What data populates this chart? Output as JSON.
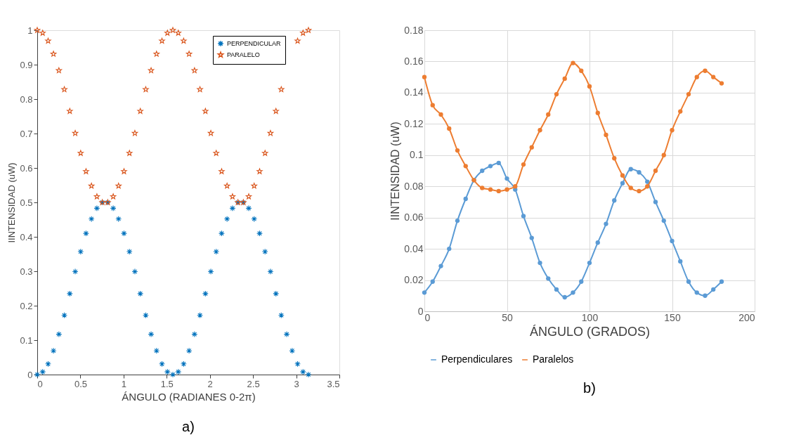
{
  "chart_data": [
    {
      "type": "scatter",
      "xlabel": "ÁNGULO (RADIANES 0-2π)",
      "ylabel": "IINTENSIDAD (uW)",
      "annotations": [
        "a)"
      ],
      "x": [
        0,
        0.063,
        0.126,
        0.188,
        0.251,
        0.314,
        0.377,
        0.44,
        0.503,
        0.565,
        0.628,
        0.691,
        0.754,
        0.817,
        0.88,
        0.942,
        1.005,
        1.068,
        1.131,
        1.194,
        1.257,
        1.319,
        1.382,
        1.445,
        1.508,
        1.571,
        1.634,
        1.696,
        1.759,
        1.822,
        1.885,
        1.948,
        2.011,
        2.073,
        2.136,
        2.199,
        2.262,
        2.325,
        2.388,
        2.45,
        2.513,
        2.576,
        2.639,
        2.702,
        2.765,
        2.827,
        2.89,
        2.953,
        3.016,
        3.079,
        3.142
      ],
      "series": [
        {
          "name": "PERPENDICULAR",
          "color": "#0072bd",
          "marker": "cross",
          "values": [
            0,
            0.008,
            0.031,
            0.069,
            0.117,
            0.172,
            0.235,
            0.299,
            0.357,
            0.41,
            0.452,
            0.483,
            0.5,
            0.5,
            0.483,
            0.452,
            0.41,
            0.357,
            0.299,
            0.235,
            0.172,
            0.117,
            0.069,
            0.031,
            0.008,
            0,
            0.008,
            0.031,
            0.069,
            0.117,
            0.172,
            0.235,
            0.299,
            0.357,
            0.41,
            0.452,
            0.483,
            0.5,
            0.5,
            0.483,
            0.452,
            0.41,
            0.357,
            0.299,
            0.235,
            0.172,
            0.117,
            0.069,
            0.031,
            0.008,
            0
          ]
        },
        {
          "name": "PARALELO",
          "color": "#d95319",
          "marker": "star",
          "values": [
            1,
            0.992,
            0.969,
            0.931,
            0.883,
            0.828,
            0.765,
            0.701,
            0.643,
            0.59,
            0.548,
            0.517,
            0.5,
            0.5,
            0.517,
            0.548,
            0.59,
            0.643,
            0.701,
            0.765,
            0.828,
            0.883,
            0.931,
            0.969,
            0.992,
            1,
            0.992,
            0.969,
            0.931,
            0.883,
            0.828,
            0.765,
            0.701,
            0.643,
            0.59,
            0.548,
            0.517,
            0.5,
            0.5,
            0.517,
            0.548,
            0.59,
            0.643,
            0.701,
            0.765,
            0.828,
            null,
            null,
            0.969,
            0.992,
            1
          ]
        }
      ],
      "xlim": [
        0,
        3.5
      ],
      "xticks": [
        0,
        0.5,
        1,
        1.5,
        2,
        2.5,
        3,
        3.5
      ],
      "ylim": [
        0,
        1
      ],
      "yticks": [
        0,
        0.1,
        0.2,
        0.3,
        0.4,
        0.5,
        0.6,
        0.7,
        0.8,
        0.9,
        1
      ],
      "grid": false,
      "legend": "top right"
    },
    {
      "type": "line",
      "xlabel": "ÁNGULO (GRADOS)",
      "ylabel": "IINTENSIDAD (uW)",
      "annotations": [
        "b)"
      ],
      "x": [
        0,
        5,
        10,
        15,
        20,
        25,
        30,
        35,
        40,
        45,
        50,
        55,
        60,
        65,
        70,
        75,
        80,
        85,
        90,
        95,
        100,
        105,
        110,
        115,
        120,
        125,
        130,
        135,
        140,
        145,
        150,
        155,
        160,
        165,
        170,
        175,
        180
      ],
      "series": [
        {
          "name": "Perpendiculares",
          "color": "#5b9bd5",
          "values": [
            0.012,
            0.019,
            0.029,
            0.04,
            0.058,
            0.072,
            0.084,
            0.09,
            0.093,
            0.095,
            0.085,
            0.078,
            0.061,
            0.047,
            0.031,
            0.021,
            0.014,
            0.009,
            0.012,
            0.019,
            0.031,
            0.044,
            0.056,
            0.071,
            0.082,
            0.091,
            0.089,
            0.083,
            0.07,
            0.058,
            0.045,
            0.032,
            0.019,
            0.012,
            0.01,
            0.014,
            0.019
          ]
        },
        {
          "name": "Paralelos",
          "color": "#ed7d31",
          "values": [
            0.15,
            0.132,
            0.126,
            0.117,
            0.103,
            0.093,
            0.084,
            0.079,
            0.078,
            0.077,
            0.078,
            0.08,
            0.094,
            0.105,
            0.116,
            0.126,
            0.139,
            0.149,
            0.159,
            0.154,
            0.144,
            0.127,
            0.113,
            0.098,
            0.087,
            0.079,
            0.077,
            0.08,
            0.09,
            0.1,
            0.116,
            0.128,
            0.139,
            0.15,
            0.154,
            0.15,
            0.146
          ]
        }
      ],
      "xlim": [
        0,
        200
      ],
      "xticks": [
        0,
        50,
        100,
        150,
        200
      ],
      "ylim": [
        0,
        0.18
      ],
      "yticks": [
        0,
        0.02,
        0.04,
        0.06,
        0.08,
        0.1,
        0.12,
        0.14,
        0.16,
        0.18
      ],
      "grid": true,
      "marker": "circle",
      "legend": "bottom"
    }
  ]
}
